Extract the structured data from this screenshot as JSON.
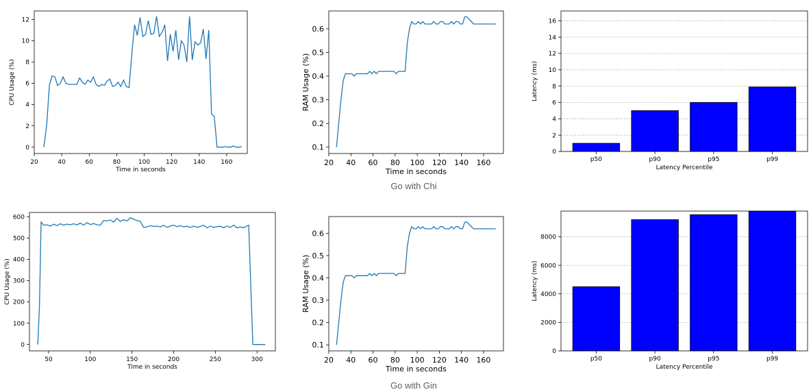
{
  "captions": {
    "row1": "Go with Chi",
    "row2": "Go with Gin"
  },
  "colors": {
    "line": "#1f77b4",
    "bar": "#0000ff",
    "grid": "#b0b0b0",
    "axis": "#000000"
  },
  "chart_data": [
    {
      "id": "chi-cpu",
      "type": "line",
      "xlabel": "Time in seconds",
      "ylabel": "CPU Usage (%)",
      "xlim": [
        20,
        175
      ],
      "ylim": [
        -0.6,
        12.8
      ],
      "xticks": [
        20,
        40,
        60,
        80,
        100,
        120,
        140,
        160
      ],
      "yticks": [
        0,
        2,
        4,
        6,
        8,
        10,
        12
      ],
      "grid": false,
      "series": [
        {
          "name": "CPU",
          "x": [
            27,
            29,
            31,
            33,
            35,
            37,
            39,
            41,
            43,
            45,
            47,
            49,
            51,
            53,
            55,
            57,
            59,
            61,
            63,
            65,
            67,
            69,
            71,
            73,
            75,
            77,
            79,
            81,
            83,
            85,
            87,
            89,
            91,
            93,
            95,
            97,
            99,
            101,
            103,
            105,
            107,
            109,
            111,
            113,
            115,
            117,
            119,
            121,
            123,
            125,
            127,
            129,
            131,
            133,
            135,
            137,
            139,
            141,
            143,
            145,
            147,
            149,
            151,
            153,
            155,
            157,
            159,
            161,
            163,
            165,
            167,
            169,
            171
          ],
          "y": [
            0,
            2,
            5.8,
            6.7,
            6.6,
            5.8,
            6,
            6.6,
            6,
            5.9,
            5.9,
            5.9,
            5.9,
            6.5,
            6.1,
            5.9,
            6.3,
            6.1,
            6.6,
            5.9,
            5.7,
            5.9,
            5.8,
            6.2,
            6.4,
            5.7,
            5.8,
            6.1,
            5.7,
            6.3,
            5.7,
            5.6,
            8.8,
            11.5,
            10.5,
            12.2,
            10.4,
            10.6,
            11.9,
            10.6,
            10.7,
            12.3,
            10.4,
            10.8,
            11.5,
            8.1,
            10.6,
            9,
            11,
            8.2,
            10,
            9.6,
            8,
            12.3,
            8.2,
            9.9,
            9.6,
            9.8,
            11.1,
            8.3,
            11,
            3.1,
            2.9,
            0,
            0,
            0,
            0.05,
            0,
            0,
            0.1,
            0,
            0,
            0.05
          ]
        }
      ]
    },
    {
      "id": "chi-ram",
      "type": "line",
      "xlabel": "Time in seconds",
      "ylabel": "RAM Usage (%)",
      "xlim": [
        20,
        178
      ],
      "ylim": [
        0.073,
        0.675
      ],
      "xticks": [
        20,
        40,
        60,
        80,
        100,
        120,
        140,
        160
      ],
      "yticks": [
        0.1,
        0.2,
        0.3,
        0.4,
        0.5,
        0.6
      ],
      "grid": false,
      "series": [
        {
          "name": "RAM",
          "x": [
            27,
            29,
            31,
            33,
            35,
            37,
            39,
            41,
            43,
            45,
            47,
            49,
            51,
            53,
            55,
            57,
            59,
            61,
            63,
            65,
            67,
            69,
            71,
            73,
            75,
            77,
            79,
            81,
            83,
            85,
            87,
            89,
            91,
            93,
            95,
            97,
            99,
            101,
            103,
            105,
            107,
            109,
            111,
            113,
            115,
            117,
            119,
            121,
            123,
            125,
            127,
            129,
            131,
            133,
            135,
            137,
            139,
            141,
            143,
            145,
            147,
            149,
            151,
            153,
            155,
            157,
            159,
            161,
            163,
            165,
            167,
            169,
            171
          ],
          "y": [
            0.1,
            0.2,
            0.3,
            0.38,
            0.41,
            0.41,
            0.41,
            0.41,
            0.4,
            0.41,
            0.41,
            0.41,
            0.41,
            0.41,
            0.41,
            0.42,
            0.41,
            0.42,
            0.41,
            0.42,
            0.42,
            0.42,
            0.42,
            0.42,
            0.42,
            0.42,
            0.42,
            0.41,
            0.42,
            0.42,
            0.42,
            0.42,
            0.54,
            0.6,
            0.63,
            0.62,
            0.62,
            0.63,
            0.62,
            0.63,
            0.62,
            0.62,
            0.62,
            0.62,
            0.63,
            0.62,
            0.62,
            0.63,
            0.63,
            0.62,
            0.62,
            0.62,
            0.63,
            0.62,
            0.63,
            0.63,
            0.62,
            0.62,
            0.65,
            0.65,
            0.64,
            0.63,
            0.62,
            0.62,
            0.62,
            0.62,
            0.62,
            0.62,
            0.62,
            0.62,
            0.62,
            0.62,
            0.62
          ]
        }
      ]
    },
    {
      "id": "chi-latency",
      "type": "bar",
      "xlabel": "Latency Percentile",
      "ylabel": "Latency (ms)",
      "ylim": [
        0,
        17.2
      ],
      "yticks": [
        0,
        2,
        4,
        6,
        8,
        10,
        12,
        14,
        16
      ],
      "grid": true,
      "categories": [
        "p50",
        "p90",
        "p95",
        "p99"
      ],
      "values": [
        1,
        5,
        6,
        7.9
      ]
    },
    {
      "id": "gin-cpu",
      "type": "line",
      "xlabel": "Time in seconds",
      "ylabel": "CPU Usage (%)",
      "xlim": [
        27,
        322
      ],
      "ylim": [
        -30,
        620
      ],
      "xticks": [
        50,
        100,
        150,
        200,
        250,
        300
      ],
      "yticks": [
        0,
        100,
        200,
        300,
        400,
        500,
        600
      ],
      "grid": false,
      "series": [
        {
          "name": "CPU",
          "x": [
            37,
            39,
            41,
            44,
            48,
            52,
            56,
            60,
            64,
            68,
            72,
            76,
            80,
            84,
            88,
            92,
            96,
            100,
            104,
            108,
            112,
            116,
            120,
            124,
            128,
            132,
            136,
            140,
            144,
            148,
            152,
            156,
            160,
            164,
            168,
            172,
            176,
            180,
            184,
            188,
            192,
            196,
            200,
            204,
            208,
            212,
            216,
            220,
            224,
            228,
            232,
            236,
            240,
            244,
            248,
            252,
            256,
            260,
            264,
            268,
            272,
            276,
            280,
            284,
            287,
            290,
            295,
            300,
            305,
            310
          ],
          "y": [
            0,
            180,
            575,
            560,
            562,
            556,
            565,
            558,
            567,
            560,
            565,
            562,
            567,
            562,
            570,
            560,
            572,
            563,
            568,
            562,
            560,
            582,
            580,
            585,
            575,
            592,
            578,
            586,
            580,
            595,
            588,
            582,
            578,
            550,
            552,
            558,
            554,
            556,
            552,
            560,
            550,
            556,
            560,
            553,
            558,
            552,
            555,
            550,
            556,
            550,
            554,
            560,
            548,
            556,
            550,
            553,
            555,
            548,
            556,
            550,
            560,
            548,
            552,
            548,
            555,
            560,
            0,
            0,
            0,
            0
          ]
        }
      ]
    },
    {
      "id": "gin-ram",
      "type": "line",
      "xlabel": "Time in seconds",
      "ylabel": "RAM Usage (%)",
      "xlim": [
        20,
        178
      ],
      "ylim": [
        0.073,
        0.675
      ],
      "xticks": [
        20,
        40,
        60,
        80,
        100,
        120,
        140,
        160
      ],
      "yticks": [
        0.1,
        0.2,
        0.3,
        0.4,
        0.5,
        0.6
      ],
      "grid": false,
      "series": [
        {
          "name": "RAM",
          "x": [
            27,
            29,
            31,
            33,
            35,
            37,
            39,
            41,
            43,
            45,
            47,
            49,
            51,
            53,
            55,
            57,
            59,
            61,
            63,
            65,
            67,
            69,
            71,
            73,
            75,
            77,
            79,
            81,
            83,
            85,
            87,
            89,
            91,
            93,
            95,
            97,
            99,
            101,
            103,
            105,
            107,
            109,
            111,
            113,
            115,
            117,
            119,
            121,
            123,
            125,
            127,
            129,
            131,
            133,
            135,
            137,
            139,
            141,
            143,
            145,
            147,
            149,
            151,
            153,
            155,
            157,
            159,
            161,
            163,
            165,
            167,
            169,
            171
          ],
          "y": [
            0.1,
            0.2,
            0.3,
            0.38,
            0.41,
            0.41,
            0.41,
            0.41,
            0.4,
            0.41,
            0.41,
            0.41,
            0.41,
            0.41,
            0.41,
            0.42,
            0.41,
            0.42,
            0.41,
            0.42,
            0.42,
            0.42,
            0.42,
            0.42,
            0.42,
            0.42,
            0.42,
            0.41,
            0.42,
            0.42,
            0.42,
            0.42,
            0.54,
            0.6,
            0.63,
            0.62,
            0.62,
            0.63,
            0.62,
            0.63,
            0.62,
            0.62,
            0.62,
            0.62,
            0.63,
            0.62,
            0.62,
            0.63,
            0.63,
            0.62,
            0.62,
            0.62,
            0.63,
            0.62,
            0.63,
            0.63,
            0.62,
            0.62,
            0.65,
            0.65,
            0.64,
            0.63,
            0.62,
            0.62,
            0.62,
            0.62,
            0.62,
            0.62,
            0.62,
            0.62,
            0.62,
            0.62,
            0.62
          ]
        }
      ]
    },
    {
      "id": "gin-latency",
      "type": "bar",
      "xlabel": "Latency Percentile",
      "ylabel": "Latency (ms)",
      "ylim": [
        0,
        9800
      ],
      "yticks": [
        0,
        2000,
        4000,
        6000,
        8000
      ],
      "grid": true,
      "categories": [
        "p50",
        "p90",
        "p95",
        "p99"
      ],
      "values": [
        4500,
        9200,
        9550,
        9800
      ]
    }
  ]
}
